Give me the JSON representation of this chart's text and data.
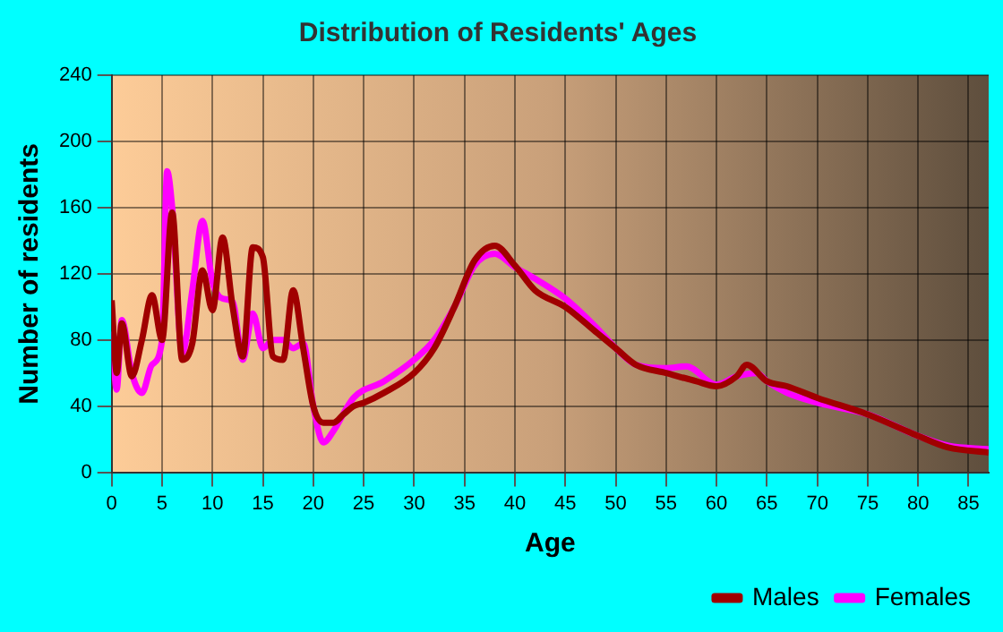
{
  "chart_data": {
    "type": "line",
    "title": "Distribution of Residents' Ages",
    "xlabel": "Age",
    "ylabel": "Number of residents",
    "xlim": [
      0,
      87
    ],
    "xticks": [
      0,
      5,
      10,
      15,
      20,
      25,
      30,
      35,
      40,
      45,
      50,
      55,
      60,
      65,
      70,
      75,
      80,
      85
    ],
    "ylim": [
      0,
      240
    ],
    "yticks": [
      0,
      40,
      80,
      120,
      160,
      200,
      240
    ],
    "grid": true,
    "legend": "bottom right",
    "marker": "none",
    "line_style": "solid",
    "series": [
      {
        "name": "Males",
        "color": "#a00000",
        "x": [
          0,
          0.5,
          1,
          2,
          3,
          4,
          5,
          6,
          7,
          8,
          9,
          10,
          11,
          12,
          13,
          14,
          15,
          16,
          17,
          18,
          19,
          20,
          21,
          22,
          23,
          24,
          25,
          27,
          30,
          32,
          34,
          36,
          38,
          40,
          42,
          45,
          48,
          50,
          52,
          55,
          58,
          60,
          62,
          63,
          65,
          67,
          70,
          75,
          80,
          83,
          87
        ],
        "values": [
          104,
          60,
          90,
          58,
          80,
          107,
          80,
          157,
          68,
          78,
          122,
          98,
          142,
          100,
          70,
          136,
          130,
          70,
          68,
          110,
          75,
          40,
          30,
          30,
          35,
          40,
          42,
          48,
          60,
          75,
          100,
          128,
          137,
          125,
          110,
          100,
          85,
          75,
          65,
          60,
          55,
          52,
          58,
          65,
          55,
          52,
          45,
          35,
          22,
          15,
          12
        ]
      },
      {
        "name": "Females",
        "color": "#ff00ff",
        "x": [
          0,
          0.5,
          1,
          2,
          3,
          4,
          5,
          5.5,
          6,
          7,
          8,
          9,
          10,
          11,
          12,
          13,
          14,
          15,
          16,
          17,
          18,
          19,
          20,
          21,
          22,
          24,
          27,
          30,
          32,
          34,
          36,
          38,
          40,
          42,
          45,
          48,
          50,
          52,
          55,
          57,
          60,
          62,
          64,
          65,
          67,
          70,
          75,
          80,
          83,
          87
        ],
        "values": [
          85,
          50,
          92,
          60,
          48,
          65,
          80,
          182,
          160,
          72,
          110,
          152,
          115,
          105,
          103,
          68,
          96,
          75,
          80,
          80,
          75,
          78,
          40,
          18,
          25,
          45,
          55,
          68,
          80,
          100,
          125,
          132,
          124,
          117,
          105,
          88,
          75,
          65,
          63,
          64,
          53,
          58,
          60,
          55,
          48,
          42,
          35,
          22,
          16,
          14
        ]
      }
    ]
  }
}
